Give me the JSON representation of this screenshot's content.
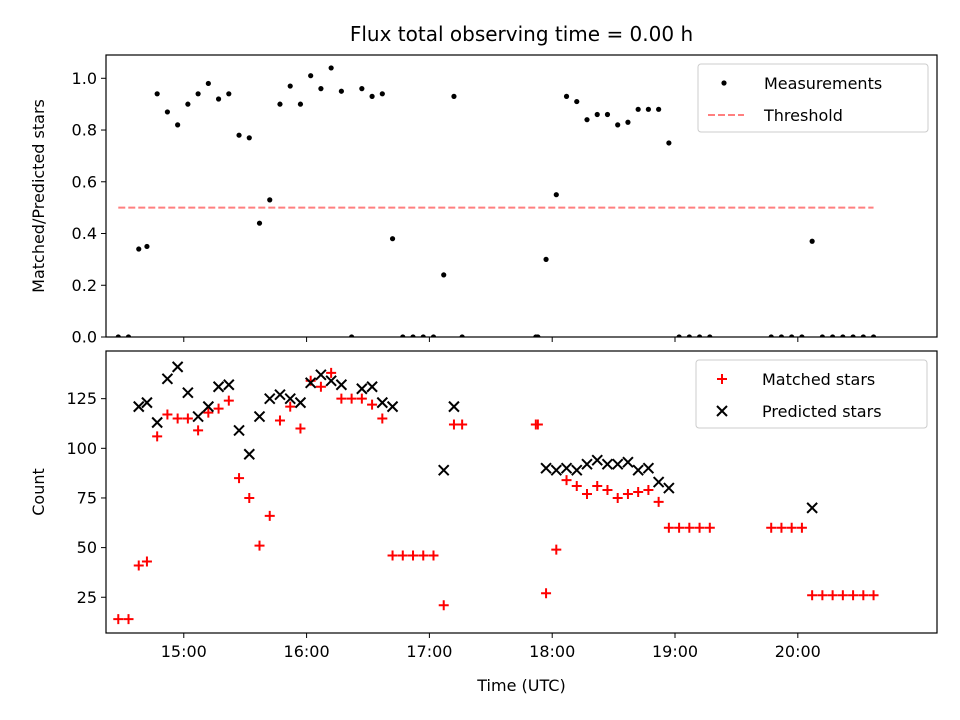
{
  "chart_data": [
    {
      "type": "scatter",
      "title": "Flux total observing time = 0.00 h",
      "xlabel": "",
      "ylabel": "Matched/Predicted stars",
      "x_scale": "time",
      "xlim": [
        "14:22",
        "21:08"
      ],
      "ylim": [
        0,
        1.09
      ],
      "yticks": [
        0.0,
        0.2,
        0.4,
        0.6,
        0.8,
        1.0
      ],
      "ytick_labels": [
        "0.0",
        "0.2",
        "0.4",
        "0.6",
        "0.8",
        "1.0"
      ],
      "legend_placement": "upper right",
      "series": [
        {
          "name": "Measurements",
          "marker": "dot",
          "color": "#000000",
          "x": [
            "14:28",
            "14:33",
            "14:38",
            "14:42",
            "14:47",
            "14:52",
            "14:57",
            "15:02",
            "15:07",
            "15:12",
            "15:17",
            "15:22",
            "15:27",
            "15:32",
            "15:37",
            "15:42",
            "15:47",
            "15:52",
            "15:57",
            "16:02",
            "16:07",
            "16:12",
            "16:17",
            "16:22",
            "16:27",
            "16:32",
            "16:37",
            "16:42",
            "16:47",
            "16:52",
            "16:57",
            "17:02",
            "17:07",
            "17:12",
            "17:16",
            "17:52",
            "17:53",
            "17:57",
            "18:02",
            "18:07",
            "18:12",
            "18:17",
            "18:22",
            "18:27",
            "18:32",
            "18:37",
            "18:42",
            "18:47",
            "18:52",
            "18:57",
            "19:02",
            "19:07",
            "19:12",
            "19:17",
            "19:47",
            "19:52",
            "19:57",
            "20:02",
            "20:07",
            "20:12",
            "20:17",
            "20:22",
            "20:27",
            "20:32",
            "20:37"
          ],
          "y": [
            0.0,
            0.0,
            0.34,
            0.35,
            0.94,
            0.87,
            0.82,
            0.9,
            0.94,
            0.98,
            0.92,
            0.94,
            0.78,
            0.77,
            0.44,
            0.53,
            0.9,
            0.97,
            0.9,
            1.01,
            0.96,
            1.04,
            0.95,
            0.0,
            0.96,
            0.93,
            0.94,
            0.38,
            0.0,
            0.0,
            0.0,
            0.0,
            0.24,
            0.93,
            0.0,
            0.0,
            0.0,
            0.3,
            0.55,
            0.93,
            0.91,
            0.84,
            0.86,
            0.86,
            0.82,
            0.83,
            0.88,
            0.88,
            0.88,
            0.75,
            0.0,
            0.0,
            0.0,
            0.0,
            0.0,
            0.0,
            0.0,
            0.0,
            0.37,
            0.0,
            0.0,
            0.0,
            0.0,
            0.0,
            0.0
          ]
        },
        {
          "name": "Threshold",
          "type": "line",
          "style": "dashed",
          "color": "#ff7f7f",
          "x": [
            "14:28",
            "20:37"
          ],
          "y": [
            0.5,
            0.5
          ]
        }
      ]
    },
    {
      "type": "scatter",
      "title": "",
      "xlabel": "Time (UTC)",
      "ylabel": "Count",
      "x_scale": "time",
      "xlim": [
        "14:22",
        "21:08"
      ],
      "ylim": [
        7,
        149
      ],
      "yticks": [
        25,
        50,
        75,
        100,
        125
      ],
      "ytick_labels": [
        "25",
        "50",
        "75",
        "100",
        "125"
      ],
      "xticks": [
        "15:00",
        "16:00",
        "17:00",
        "18:00",
        "19:00",
        "20:00"
      ],
      "xtick_labels": [
        "15:00",
        "16:00",
        "17:00",
        "18:00",
        "19:00",
        "20:00"
      ],
      "legend_placement": "upper right",
      "series": [
        {
          "name": "Matched stars",
          "marker": "plus",
          "color": "#ff0000",
          "x": [
            "14:28",
            "14:33",
            "14:38",
            "14:42",
            "14:47",
            "14:52",
            "14:57",
            "15:02",
            "15:07",
            "15:12",
            "15:17",
            "15:22",
            "15:27",
            "15:32",
            "15:37",
            "15:42",
            "15:47",
            "15:52",
            "15:57",
            "16:02",
            "16:07",
            "16:12",
            "16:17",
            "16:22",
            "16:27",
            "16:32",
            "16:37",
            "16:42",
            "16:47",
            "16:52",
            "16:57",
            "17:02",
            "17:07",
            "17:12",
            "17:16",
            "17:52",
            "17:53",
            "17:57",
            "18:02",
            "18:07",
            "18:12",
            "18:17",
            "18:22",
            "18:27",
            "18:32",
            "18:37",
            "18:42",
            "18:47",
            "18:52",
            "18:57",
            "19:02",
            "19:07",
            "19:12",
            "19:17",
            "19:47",
            "19:52",
            "19:57",
            "20:02",
            "20:07",
            "20:12",
            "20:17",
            "20:22",
            "20:27",
            "20:32",
            "20:37"
          ],
          "y": [
            14,
            14,
            41,
            43,
            106,
            117,
            115,
            115,
            109,
            118,
            120,
            124,
            85,
            75,
            51,
            66,
            114,
            121,
            110,
            134,
            131,
            138,
            125,
            125,
            125,
            122,
            115,
            46,
            46,
            46,
            46,
            46,
            21,
            112,
            112,
            112,
            112,
            27,
            49,
            84,
            81,
            77,
            81,
            79,
            75,
            77,
            78,
            79,
            73,
            60,
            60,
            60,
            60,
            60,
            60,
            60,
            60,
            60,
            26,
            26,
            26,
            26,
            26,
            26,
            26
          ]
        },
        {
          "name": "Predicted stars",
          "marker": "x",
          "color": "#000000",
          "x": [
            "14:38",
            "14:42",
            "14:47",
            "14:52",
            "14:57",
            "15:02",
            "15:07",
            "15:12",
            "15:17",
            "15:22",
            "15:27",
            "15:32",
            "15:37",
            "15:42",
            "15:47",
            "15:52",
            "15:57",
            "16:02",
            "16:07",
            "16:12",
            "16:17",
            "16:27",
            "16:32",
            "16:37",
            "16:42",
            "17:07",
            "17:12",
            "17:57",
            "18:02",
            "18:07",
            "18:12",
            "18:17",
            "18:22",
            "18:27",
            "18:32",
            "18:37",
            "18:42",
            "18:47",
            "18:52",
            "18:57",
            "20:07"
          ],
          "y": [
            121,
            123,
            113,
            135,
            141,
            128,
            116,
            121,
            131,
            132,
            109,
            97,
            116,
            125,
            127,
            125,
            123,
            133,
            137,
            134,
            132,
            130,
            131,
            123,
            121,
            89,
            121,
            90,
            89,
            90,
            89,
            92,
            94,
            92,
            92,
            93,
            89,
            90,
            83,
            80,
            70
          ]
        }
      ]
    }
  ]
}
